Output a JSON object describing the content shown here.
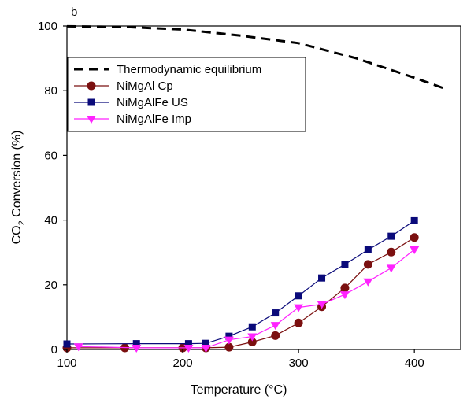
{
  "chart_data": {
    "type": "line",
    "panel_label": "b",
    "xlabel": "Temperature (°C)",
    "ylabel_parts": {
      "pre": "CO",
      "sub": "2",
      "post": " Conversion (%)"
    },
    "xlim": [
      100,
      440
    ],
    "ylim": [
      0,
      100
    ],
    "xticks": [
      100,
      200,
      300,
      400
    ],
    "yticks": [
      0,
      20,
      40,
      60,
      80,
      100
    ],
    "grid": false,
    "legend_position": "top-left",
    "series": [
      {
        "name": "Thermodynamic equilibrium",
        "style": "dashed",
        "marker": "none",
        "color": "#000000",
        "x": [
          100,
          150,
          200,
          250,
          300,
          350,
          400,
          425
        ],
        "y": [
          99.9,
          99.7,
          98.9,
          97.0,
          94.7,
          90.0,
          84.0,
          80.8
        ]
      },
      {
        "name": "NiMgAl Cp",
        "style": "solid",
        "marker": "circle",
        "color": "#7b1010",
        "x": [
          100,
          150,
          200,
          220,
          240,
          260,
          280,
          300,
          320,
          340,
          360,
          380,
          400
        ],
        "y": [
          0.5,
          0.5,
          0.5,
          0.5,
          0.7,
          2.3,
          4.3,
          8.2,
          13.2,
          19.0,
          26.3,
          30.1,
          34.6
        ]
      },
      {
        "name": "NiMgAlFe US",
        "style": "solid",
        "marker": "square",
        "color": "#0a0a7a",
        "x": [
          100,
          160,
          205,
          220,
          240,
          260,
          280,
          300,
          320,
          340,
          360,
          380,
          400
        ],
        "y": [
          1.7,
          1.8,
          1.8,
          1.9,
          4.1,
          7.0,
          11.3,
          16.6,
          22.1,
          26.3,
          30.8,
          35.0,
          39.8
        ]
      },
      {
        "name": "NiMgAlFe Imp",
        "style": "solid",
        "marker": "triangle-down",
        "color": "#ff22ff",
        "x": [
          110,
          160,
          205,
          220,
          240,
          260,
          280,
          300,
          320,
          340,
          360,
          380,
          400
        ],
        "y": [
          0.9,
          0.5,
          0.5,
          0.5,
          3.0,
          4.0,
          7.5,
          13.0,
          14.0,
          17.0,
          21.0,
          25.2,
          30.9
        ]
      }
    ]
  }
}
